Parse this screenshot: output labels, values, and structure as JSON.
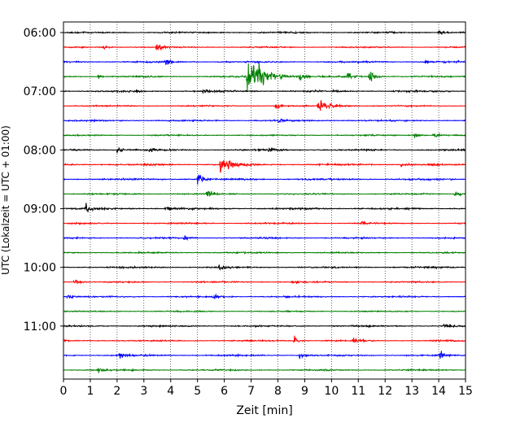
{
  "chart_data": {
    "type": "line",
    "xlabel": "Zeit  [min]",
    "ylabel": "UTC (Lokalzeit = UTC + 01:00)",
    "xlim": [
      0,
      15
    ],
    "x_ticks": [
      "0",
      "1",
      "2",
      "3",
      "4",
      "5",
      "6",
      "7",
      "8",
      "9",
      "10",
      "11",
      "12",
      "13",
      "14",
      "15"
    ],
    "y_ticks": [
      "06:00",
      "07:00",
      "08:00",
      "09:00",
      "10:00",
      "11:00"
    ],
    "grid_x": true,
    "grid_style": "dotted",
    "trace_interval_min": 15,
    "start_time": "06:00",
    "colors": [
      "#000000",
      "#ff0000",
      "#0000ff",
      "#008000"
    ],
    "traces": [
      {
        "start": "06:00",
        "color": "#000000",
        "noise": 0.55,
        "events": [
          {
            "t": 14.0,
            "amp": 0.6
          }
        ]
      },
      {
        "start": "06:15",
        "color": "#ff0000",
        "noise": 0.45,
        "events": [
          {
            "t": 3.45,
            "amp": 1.0
          },
          {
            "t": 1.5,
            "amp": 0.4
          }
        ]
      },
      {
        "start": "06:30",
        "color": "#0000ff",
        "noise": 0.55,
        "events": [
          {
            "t": 3.8,
            "amp": 0.7
          },
          {
            "t": 13.5,
            "amp": 0.5
          }
        ]
      },
      {
        "start": "06:45",
        "color": "#008000",
        "noise": 0.5,
        "events": [
          {
            "t": 1.3,
            "amp": 0.6
          },
          {
            "t": 6.85,
            "amp": 3.2,
            "dur": 0.6
          },
          {
            "t": 7.3,
            "amp": 1.2
          },
          {
            "t": 8.8,
            "amp": 0.9
          },
          {
            "t": 10.6,
            "amp": 1.2
          },
          {
            "t": 11.4,
            "amp": 1.6
          }
        ]
      },
      {
        "start": "07:00",
        "color": "#000000",
        "noise": 0.6,
        "events": [
          {
            "t": 5.2,
            "amp": 0.5
          }
        ]
      },
      {
        "start": "07:15",
        "color": "#ff0000",
        "noise": 0.45,
        "events": [
          {
            "t": 7.9,
            "amp": 0.7
          },
          {
            "t": 9.5,
            "amp": 1.2,
            "dur": 0.4
          }
        ]
      },
      {
        "start": "07:30",
        "color": "#0000ff",
        "noise": 0.5,
        "events": [
          {
            "t": 8.0,
            "amp": 0.5
          }
        ]
      },
      {
        "start": "07:45",
        "color": "#008000",
        "noise": 0.45,
        "events": [
          {
            "t": 13.1,
            "amp": 0.6
          },
          {
            "t": 13.8,
            "amp": 0.9
          }
        ]
      },
      {
        "start": "08:00",
        "color": "#000000",
        "noise": 0.55,
        "events": [
          {
            "t": 2.0,
            "amp": 0.8
          },
          {
            "t": 3.2,
            "amp": 0.6
          },
          {
            "t": 7.6,
            "amp": 0.6
          }
        ]
      },
      {
        "start": "08:15",
        "color": "#ff0000",
        "noise": 0.6,
        "events": [
          {
            "t": 5.85,
            "amp": 2.0,
            "dur": 0.35
          },
          {
            "t": 12.6,
            "amp": 0.5
          }
        ]
      },
      {
        "start": "08:30",
        "color": "#0000ff",
        "noise": 0.6,
        "events": [
          {
            "t": 5.0,
            "amp": 1.3
          }
        ]
      },
      {
        "start": "08:45",
        "color": "#008000",
        "noise": 0.45,
        "events": [
          {
            "t": 5.35,
            "amp": 1.1
          },
          {
            "t": 14.6,
            "amp": 0.7
          }
        ]
      },
      {
        "start": "09:00",
        "color": "#000000",
        "noise": 0.6,
        "events": [
          {
            "t": 0.85,
            "amp": 1.1
          },
          {
            "t": 3.8,
            "amp": 0.6
          }
        ]
      },
      {
        "start": "09:15",
        "color": "#ff0000",
        "noise": 0.45,
        "events": [
          {
            "t": 11.1,
            "amp": 0.5
          }
        ]
      },
      {
        "start": "09:30",
        "color": "#0000ff",
        "noise": 0.5,
        "events": [
          {
            "t": 4.5,
            "amp": 0.4
          }
        ]
      },
      {
        "start": "09:45",
        "color": "#008000",
        "noise": 0.45,
        "events": []
      },
      {
        "start": "10:00",
        "color": "#000000",
        "noise": 0.55,
        "events": [
          {
            "t": 5.8,
            "amp": 0.8
          }
        ]
      },
      {
        "start": "10:15",
        "color": "#ff0000",
        "noise": 0.45,
        "events": [
          {
            "t": 0.4,
            "amp": 0.7
          },
          {
            "t": 8.55,
            "amp": 0.5
          }
        ]
      },
      {
        "start": "10:30",
        "color": "#0000ff",
        "noise": 0.5,
        "events": [
          {
            "t": 0.15,
            "amp": 0.8
          },
          {
            "t": 5.6,
            "amp": 0.5
          }
        ]
      },
      {
        "start": "10:45",
        "color": "#008000",
        "noise": 0.4,
        "events": []
      },
      {
        "start": "11:00",
        "color": "#000000",
        "noise": 0.5,
        "events": [
          {
            "t": 14.2,
            "amp": 0.5
          }
        ]
      },
      {
        "start": "11:15",
        "color": "#ff0000",
        "noise": 0.45,
        "events": [
          {
            "t": 8.6,
            "amp": 0.8
          },
          {
            "t": 10.8,
            "amp": 0.6
          }
        ]
      },
      {
        "start": "11:30",
        "color": "#0000ff",
        "noise": 0.5,
        "events": [
          {
            "t": 2.1,
            "amp": 0.6
          },
          {
            "t": 8.8,
            "amp": 0.6
          },
          {
            "t": 14.05,
            "amp": 1.0
          }
        ]
      },
      {
        "start": "11:45",
        "color": "#008000",
        "noise": 0.5,
        "events": [
          {
            "t": 1.3,
            "amp": 0.8
          }
        ]
      }
    ]
  }
}
